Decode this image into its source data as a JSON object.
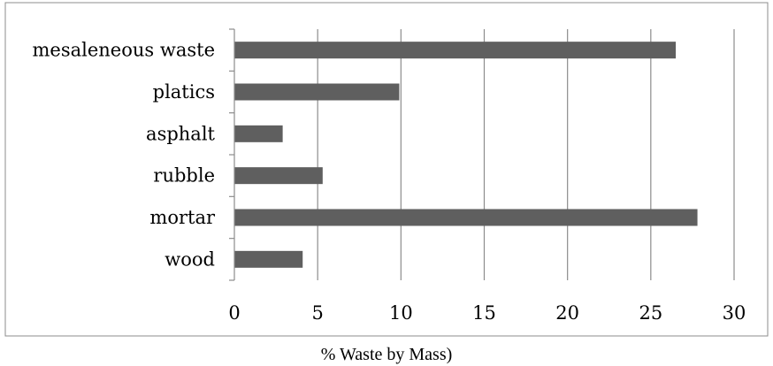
{
  "chart_data": {
    "type": "bar",
    "orientation": "horizontal",
    "categories": [
      "mesaleneous waste",
      "platics",
      "asphalt",
      "rubble",
      "mortar",
      "wood"
    ],
    "values": [
      26.5,
      9.9,
      2.9,
      5.3,
      27.8,
      4.1
    ],
    "xlabel": "% Waste by Mass)",
    "xlim": [
      0,
      30
    ],
    "xticks": [
      "0",
      "5",
      "10",
      "15",
      "20",
      "25",
      "30"
    ],
    "grid": "vertical",
    "legend": "none",
    "bar_color": "#5f5f5f",
    "grid_color": "#8c8c8c"
  }
}
